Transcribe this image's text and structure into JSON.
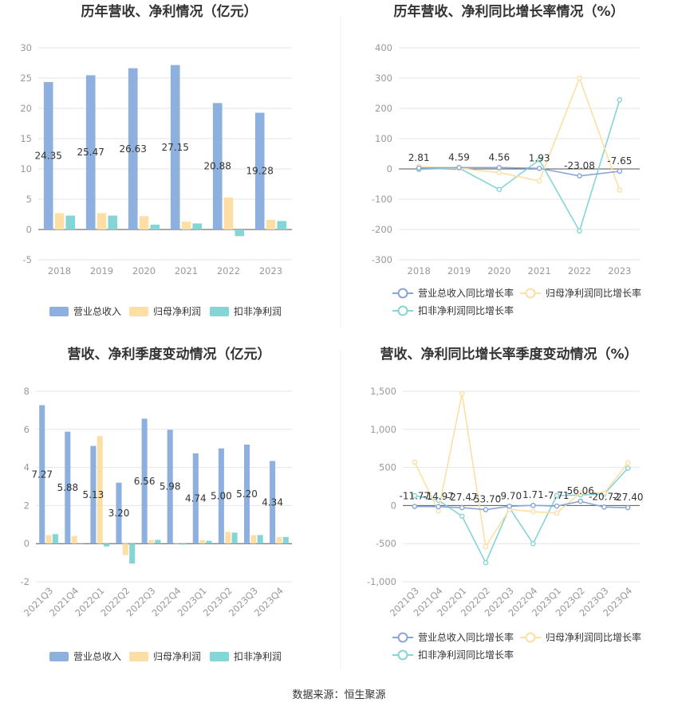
{
  "source": "数据来源：恒生聚源",
  "chart_data": [
    {
      "type": "bar",
      "title": "历年营收、净利情况（亿元）",
      "categories": [
        "2018",
        "2019",
        "2020",
        "2021",
        "2022",
        "2023"
      ],
      "ylim": [
        -5,
        30
      ],
      "yticks": [
        -5,
        0,
        5,
        10,
        15,
        20,
        25,
        30
      ],
      "series": [
        {
          "name": "营业总收入",
          "color": "#8eb0de",
          "values": [
            24.35,
            25.47,
            26.63,
            27.15,
            20.88,
            19.28
          ],
          "labels": [
            "24.35",
            "25.47",
            "26.63",
            "27.15",
            "20.88",
            "19.28"
          ]
        },
        {
          "name": "归母净利润",
          "color": "#fddfa6",
          "values": [
            2.7,
            2.7,
            2.2,
            1.3,
            5.3,
            1.6
          ]
        },
        {
          "name": "扣非净利润",
          "color": "#86d5d6",
          "values": [
            2.3,
            2.3,
            0.8,
            1.0,
            -1.1,
            1.4
          ]
        }
      ],
      "legend_position": "bottom",
      "grid": true
    },
    {
      "type": "line",
      "title": "历年营收、净利同比增长率情况（%）",
      "categories": [
        "2018",
        "2019",
        "2020",
        "2021",
        "2022",
        "2023"
      ],
      "ylim": [
        -300,
        400
      ],
      "yticks": [
        -300,
        -200,
        -100,
        0,
        100,
        200,
        300,
        400
      ],
      "series": [
        {
          "name": "营业总收入同比增长率",
          "color": "#8aa6d6",
          "values": [
            2.81,
            4.59,
            4.56,
            1.93,
            -23.08,
            -7.65
          ],
          "labels": [
            "2.81",
            "4.59",
            "4.56",
            "1.93",
            "-23.08",
            "-7.65"
          ]
        },
        {
          "name": "归母净利润同比增长率",
          "color": "#fddfa6",
          "values": [
            8,
            2,
            -12,
            -40,
            300,
            -70
          ]
        },
        {
          "name": "扣非净利润同比增长率",
          "color": "#86d5d6",
          "values": [
            -2,
            3,
            -68,
            30,
            -205,
            228
          ]
        }
      ],
      "legend_position": "bottom",
      "grid": true
    },
    {
      "type": "bar",
      "title": "营收、净利季度变动情况（亿元）",
      "categories": [
        "2021Q3",
        "2021Q4",
        "2022Q1",
        "2022Q2",
        "2022Q3",
        "2022Q4",
        "2023Q1",
        "2023Q2",
        "2023Q3",
        "2023Q4"
      ],
      "ylim": [
        -2,
        8
      ],
      "yticks": [
        -2,
        0,
        2,
        4,
        6,
        8
      ],
      "series": [
        {
          "name": "营业总收入",
          "color": "#8eb0de",
          "values": [
            7.27,
            5.88,
            5.13,
            3.2,
            6.56,
            5.98,
            4.74,
            5.0,
            5.2,
            4.34
          ],
          "labels": [
            "7.27",
            "5.88",
            "5.13",
            "3.20",
            "6.56",
            "5.98",
            "4.74",
            "5.00",
            "5.20",
            "4.34"
          ]
        },
        {
          "name": "归母净利润",
          "color": "#fddfa6",
          "values": [
            0.45,
            0.4,
            5.65,
            -0.6,
            0.18,
            0.02,
            0.18,
            0.62,
            0.45,
            0.35
          ]
        },
        {
          "name": "扣非净利润",
          "color": "#86d5d6",
          "values": [
            0.5,
            0.02,
            -0.15,
            -1.05,
            0.2,
            -0.05,
            0.15,
            0.58,
            0.45,
            0.35
          ]
        }
      ],
      "legend_position": "bottom",
      "grid": true
    },
    {
      "type": "line",
      "title": "营收、净利同比增长率季度变动情况（%）",
      "categories": [
        "2021Q3",
        "2021Q4",
        "2022Q1",
        "2022Q2",
        "2022Q3",
        "2022Q4",
        "2023Q1",
        "2023Q2",
        "2023Q3",
        "2023Q4"
      ],
      "ylim": [
        -1000,
        1500
      ],
      "yticks": [
        -1000,
        -500,
        0,
        500,
        1000,
        1500
      ],
      "ytick_labels": [
        "-1,000",
        "-500",
        "0",
        "500",
        "1,000",
        "1,500"
      ],
      "series": [
        {
          "name": "营业总收入同比增长率",
          "color": "#8aa6d6",
          "values": [
            -11.77,
            -14.97,
            -27.47,
            -53.7,
            -9.7,
            1.71,
            -7.71,
            56.06,
            -20.72,
            -27.4
          ],
          "labels": [
            "-11.77",
            "-14.97",
            "-27.47",
            "-53.70",
            "-9.70",
            "1.71",
            "-7.71",
            "56.06",
            "-20.72",
            "-27.40"
          ]
        },
        {
          "name": "归母净利润同比增长率",
          "color": "#fddfa6",
          "values": [
            570,
            -70,
            1470,
            -540,
            -50,
            -80,
            -100,
            170,
            160,
            560
          ]
        },
        {
          "name": "扣非净利润同比增长率",
          "color": "#86d5d6",
          "values": [
            130,
            70,
            -140,
            -750,
            -30,
            -500,
            130,
            140,
            150,
            490
          ]
        }
      ],
      "legend_position": "bottom",
      "grid": true
    }
  ]
}
